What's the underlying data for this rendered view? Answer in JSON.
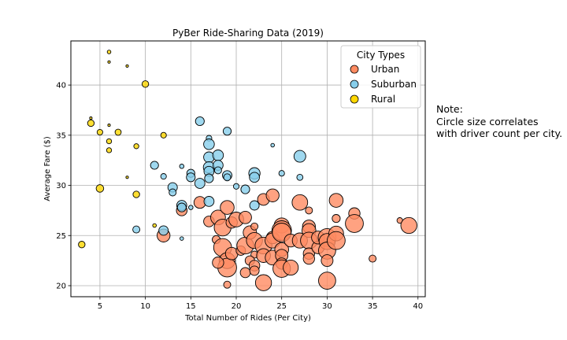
{
  "chart_data": {
    "type": "scatter",
    "title": "PyBer Ride-Sharing Data (2019)",
    "xlabel": "Total Number of Rides (Per City)",
    "ylabel": "Average Fare ($)",
    "xlim": [
      1.8,
      40.8
    ],
    "ylim": [
      18.9,
      44.4
    ],
    "xticks": [
      5,
      10,
      15,
      20,
      25,
      30,
      35,
      40
    ],
    "yticks": [
      20,
      25,
      30,
      35,
      40
    ],
    "grid": true,
    "legend": {
      "title": "City Types",
      "placement": "top-right"
    },
    "series": [
      {
        "name": "Urban",
        "color": "#ff8b61",
        "points": [
          [
            12,
            25.0,
            26
          ],
          [
            14,
            27.5,
            18
          ],
          [
            16,
            28.3,
            22
          ],
          [
            17,
            26.4,
            18
          ],
          [
            17.8,
            24.6,
            10
          ],
          [
            18,
            26.8,
            34
          ],
          [
            18.5,
            25.8,
            44
          ],
          [
            19,
            27.8,
            30
          ],
          [
            19.5,
            26.3,
            20
          ],
          [
            20,
            26.6,
            34
          ],
          [
            18.5,
            23.8,
            50
          ],
          [
            19,
            22.5,
            40
          ],
          [
            19,
            21.8,
            55
          ],
          [
            18,
            22.3,
            20
          ],
          [
            19.5,
            23.2,
            24
          ],
          [
            20.5,
            23.5,
            14
          ],
          [
            19,
            20.1,
            8
          ],
          [
            21,
            24.0,
            44
          ],
          [
            21,
            26.8,
            24
          ],
          [
            21.5,
            25.3,
            28
          ],
          [
            22,
            25.9,
            8
          ],
          [
            22,
            24.5,
            40
          ],
          [
            22,
            23.1,
            8
          ],
          [
            21.5,
            22.5,
            14
          ],
          [
            21,
            21.3,
            16
          ],
          [
            22,
            22.0,
            18
          ],
          [
            22,
            21.5,
            14
          ],
          [
            23,
            28.6,
            22
          ],
          [
            23,
            24.0,
            44
          ],
          [
            23,
            23.0,
            30
          ],
          [
            23,
            20.3,
            40
          ],
          [
            24,
            29.0,
            26
          ],
          [
            24,
            24.8,
            24
          ],
          [
            24,
            22.8,
            34
          ],
          [
            24,
            24.5,
            36
          ],
          [
            25,
            26.0,
            36
          ],
          [
            25,
            25.5,
            60
          ],
          [
            25,
            25.3,
            55
          ],
          [
            25,
            23.6,
            30
          ],
          [
            25,
            23.0,
            24
          ],
          [
            25,
            22.2,
            20
          ],
          [
            25,
            21.7,
            48
          ],
          [
            26,
            21.8,
            36
          ],
          [
            26,
            24.5,
            26
          ],
          [
            27,
            28.3,
            38
          ],
          [
            27,
            24.5,
            36
          ],
          [
            28,
            27.5,
            8
          ],
          [
            28,
            25.9,
            26
          ],
          [
            28,
            25.5,
            30
          ],
          [
            28,
            24.5,
            44
          ],
          [
            28,
            23.2,
            20
          ],
          [
            28,
            22.7,
            20
          ],
          [
            29,
            23.8,
            24
          ],
          [
            29,
            24.8,
            26
          ],
          [
            30,
            24.8,
            50
          ],
          [
            30,
            24.4,
            40
          ],
          [
            30,
            23.5,
            46
          ],
          [
            30,
            22.5,
            22
          ],
          [
            30,
            20.5,
            46
          ],
          [
            31,
            28.5,
            30
          ],
          [
            31,
            26.7,
            10
          ],
          [
            31,
            25.2,
            34
          ],
          [
            31,
            24.5,
            50
          ],
          [
            33,
            27.2,
            20
          ],
          [
            33,
            26.2,
            50
          ],
          [
            35,
            22.7,
            8
          ],
          [
            38,
            26.5,
            5
          ],
          [
            39,
            26.0,
            40
          ]
        ]
      },
      {
        "name": "Suburban",
        "color": "#87ceeb",
        "points": [
          [
            9,
            25.6,
            8
          ],
          [
            11,
            32.0,
            10
          ],
          [
            12,
            30.9,
            5
          ],
          [
            12,
            25.5,
            14
          ],
          [
            13,
            29.8,
            14
          ],
          [
            13,
            29.3,
            8
          ],
          [
            14,
            31.9,
            3
          ],
          [
            14,
            28.0,
            16
          ],
          [
            14,
            27.8,
            12
          ],
          [
            14,
            24.7,
            2
          ],
          [
            15,
            31.2,
            10
          ],
          [
            15,
            30.8,
            12
          ],
          [
            15,
            27.8,
            3
          ],
          [
            16,
            36.4,
            12
          ],
          [
            16,
            30.2,
            16
          ],
          [
            17,
            34.7,
            5
          ],
          [
            17,
            34.1,
            18
          ],
          [
            17,
            32.8,
            18
          ],
          [
            17,
            31.8,
            20
          ],
          [
            17,
            31.4,
            16
          ],
          [
            17,
            30.7,
            12
          ],
          [
            17,
            28.4,
            16
          ],
          [
            18,
            33.0,
            18
          ],
          [
            18,
            32.0,
            16
          ],
          [
            18,
            31.5,
            8
          ],
          [
            19,
            35.4,
            10
          ],
          [
            19,
            31.0,
            14
          ],
          [
            19,
            30.8,
            8
          ],
          [
            20,
            29.9,
            5
          ],
          [
            21,
            29.6,
            12
          ],
          [
            22,
            31.2,
            20
          ],
          [
            22,
            30.8,
            16
          ],
          [
            22,
            28.0,
            14
          ],
          [
            24,
            34.0,
            2
          ],
          [
            25,
            31.2,
            5
          ],
          [
            27,
            32.9,
            22
          ],
          [
            27,
            30.8,
            6
          ]
        ]
      },
      {
        "name": "Rural",
        "color": "#ffd700",
        "points": [
          [
            3,
            24.1,
            7
          ],
          [
            4,
            36.7,
            1
          ],
          [
            4,
            36.2,
            7
          ],
          [
            5,
            35.3,
            5
          ],
          [
            5,
            29.7,
            9
          ],
          [
            6,
            43.3,
            2
          ],
          [
            6,
            42.3,
            1
          ],
          [
            6,
            36.0,
            1
          ],
          [
            6,
            34.4,
            4
          ],
          [
            6,
            33.5,
            4
          ],
          [
            7,
            35.3,
            6
          ],
          [
            8,
            41.9,
            1
          ],
          [
            8,
            30.8,
            1
          ],
          [
            9,
            33.9,
            4
          ],
          [
            9,
            29.1,
            7
          ],
          [
            10,
            40.1,
            7
          ],
          [
            11,
            26.0,
            2
          ],
          [
            12,
            35.0,
            5
          ]
        ]
      }
    ]
  },
  "note": {
    "heading": "Note:",
    "line1": "Circle size correlates",
    "line2": "with driver count per city."
  }
}
